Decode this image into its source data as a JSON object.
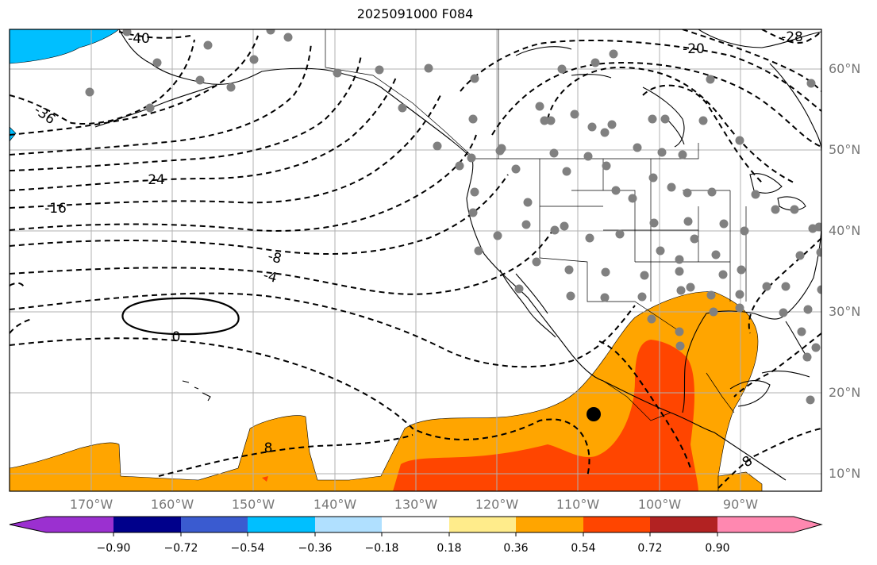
{
  "title": "2025091000 F084",
  "lon_labels": [
    "170°W",
    "160°W",
    "150°W",
    "140°W",
    "130°W",
    "120°W",
    "110°W",
    "100°W",
    "90°W"
  ],
  "lat_labels": [
    "60°N",
    "50°N",
    "40°N",
    "30°N",
    "20°N",
    "10°N"
  ],
  "contour_labels": [
    "-40",
    "-36",
    "-24",
    "-16",
    "-8",
    "-4",
    "0",
    "-20",
    "-28",
    "8",
    "8"
  ],
  "colorbar": {
    "ticks": [
      "−0.90",
      "−0.72",
      "−0.54",
      "−0.36",
      "−0.18",
      "0.18",
      "0.36",
      "0.54",
      "0.72",
      "0.90"
    ],
    "colors": [
      "#9b30d0",
      "#00008b",
      "#3a5bd0",
      "#00bfff",
      "#b0e0ff",
      "#ffffff",
      "#ffec8b",
      "#ffa500",
      "#ff4500",
      "#b22222",
      "#ff88b0"
    ]
  },
  "colors": {
    "orange": "#ffa500",
    "red_orange": "#ff4500",
    "cyan": "#00bfff",
    "station": "#808080",
    "grid": "#b0b0b0"
  }
}
